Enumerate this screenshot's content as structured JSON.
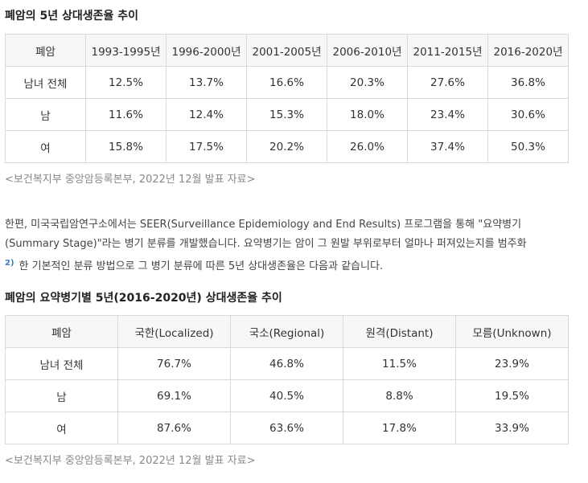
{
  "table1": {
    "title": "폐암의 5년 상대생존율 추이",
    "headers": [
      "폐암",
      "1993-1995년",
      "1996-2000년",
      "2001-2005년",
      "2006-2010년",
      "2011-2015년",
      "2016-2020년"
    ],
    "rows": [
      [
        "남녀 전체",
        "12.5%",
        "13.7%",
        "16.6%",
        "20.3%",
        "27.6%",
        "36.8%"
      ],
      [
        "남",
        "11.6%",
        "12.4%",
        "15.3%",
        "18.0%",
        "23.4%",
        "30.6%"
      ],
      [
        "여",
        "15.8%",
        "17.5%",
        "20.2%",
        "26.0%",
        "37.4%",
        "50.3%"
      ]
    ],
    "source": "<보건복지부 중앙암등록본부, 2022년 12월 발표 자료>"
  },
  "paragraph": {
    "line1": "한편, 미국국립암연구소에서는 SEER(Surveillance Epidemiology and End Results) 프로그램을 통해 \"요약병기",
    "line2": "(Summary Stage)\"라는 병기 분류를 개발했습니다. 요약병기는 암이 그 원발 부위로부터 얼마나 퍼져있는지를 범주화",
    "footnote": "2)",
    "line3": "한 기본적인 분류 방법으로 그 병기 분류에 따른 5년 상대생존율은 다음과 같습니다."
  },
  "table2": {
    "title": "폐암의 요약병기별 5년(2016-2020년) 상대생존율 추이",
    "headers": [
      "폐암",
      "국한(Localized)",
      "국소(Regional)",
      "원격(Distant)",
      "모름(Unknown)"
    ],
    "rows": [
      [
        "남녀 전체",
        "76.7%",
        "46.8%",
        "11.5%",
        "23.9%"
      ],
      [
        "남",
        "69.1%",
        "40.5%",
        "8.8%",
        "19.5%"
      ],
      [
        "여",
        "87.6%",
        "63.6%",
        "17.8%",
        "33.9%"
      ]
    ],
    "source": "<보건복지부 중앙암등록본부, 2022년 12월 발표 자료>"
  }
}
